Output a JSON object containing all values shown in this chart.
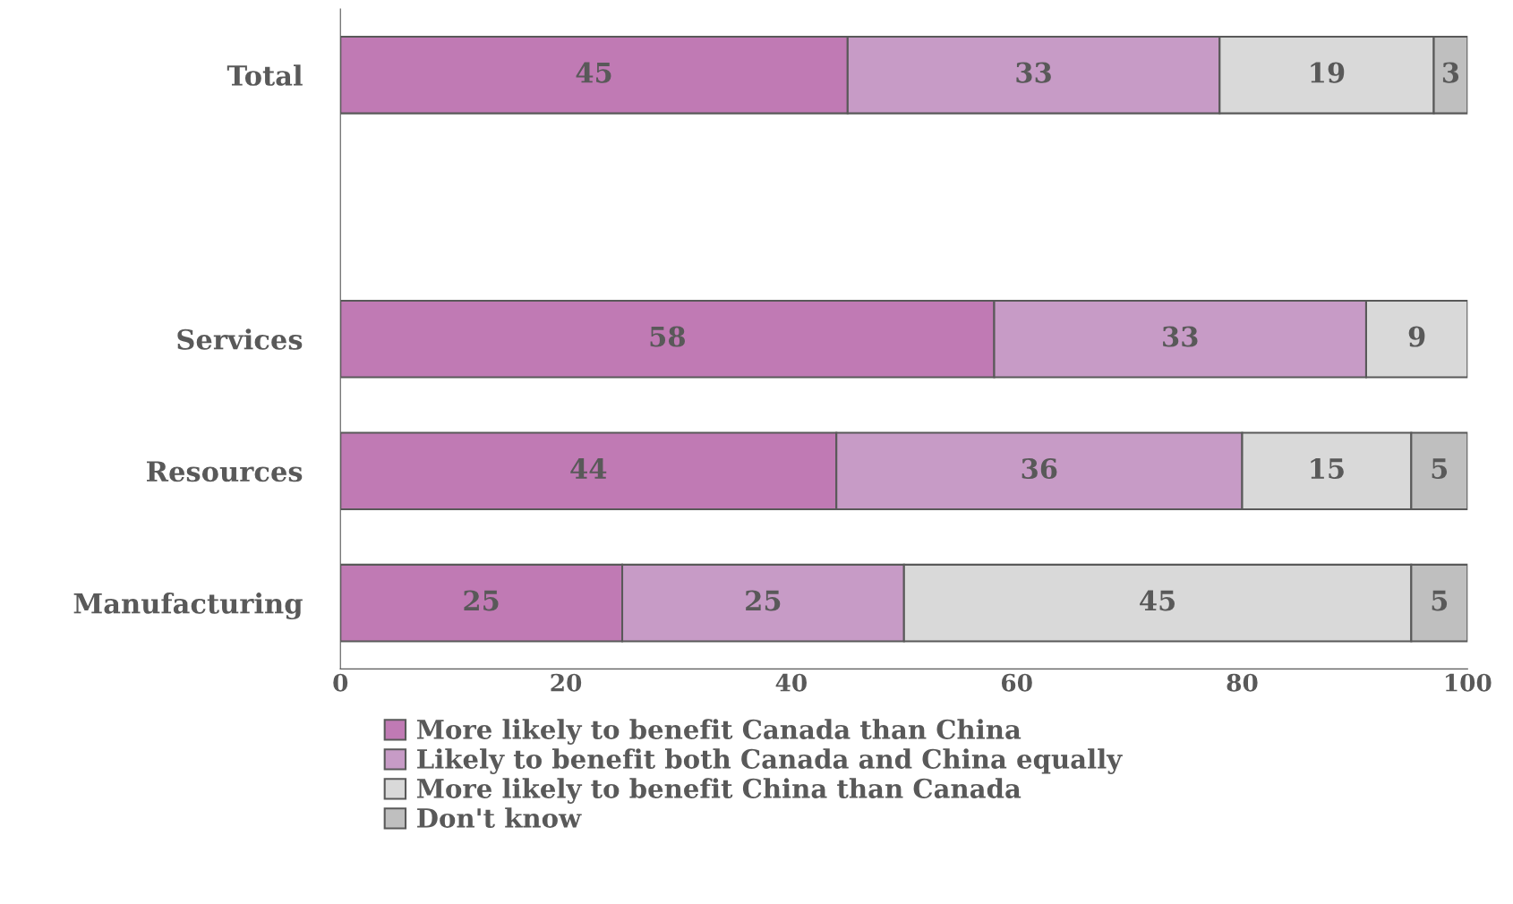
{
  "chart_data": {
    "type": "bar",
    "orientation": "horizontal",
    "stacked": true,
    "data_labels": true,
    "categories": [
      "Total",
      null,
      "Services",
      "Resources",
      "Manufacturing"
    ],
    "series": [
      {
        "name": "More likely to benefit Canada than China",
        "color": "#c07ab4",
        "values": [
          45,
          null,
          58,
          44,
          25
        ]
      },
      {
        "name": "Likely to benefit both Canada and China equally",
        "color": "#c79bc6",
        "values": [
          33,
          null,
          33,
          36,
          25
        ]
      },
      {
        "name": "More likely to benefit China than Canada",
        "color": "#d9d9d9",
        "values": [
          19,
          null,
          9,
          15,
          45
        ]
      },
      {
        "name": "Don't know",
        "color": "#bfbfbf",
        "values": [
          3,
          null,
          null,
          5,
          5
        ]
      }
    ],
    "xlim": [
      0,
      100
    ],
    "xticks": [
      0,
      20,
      40,
      60,
      80,
      100
    ],
    "grid": false,
    "legend": "bottom"
  }
}
